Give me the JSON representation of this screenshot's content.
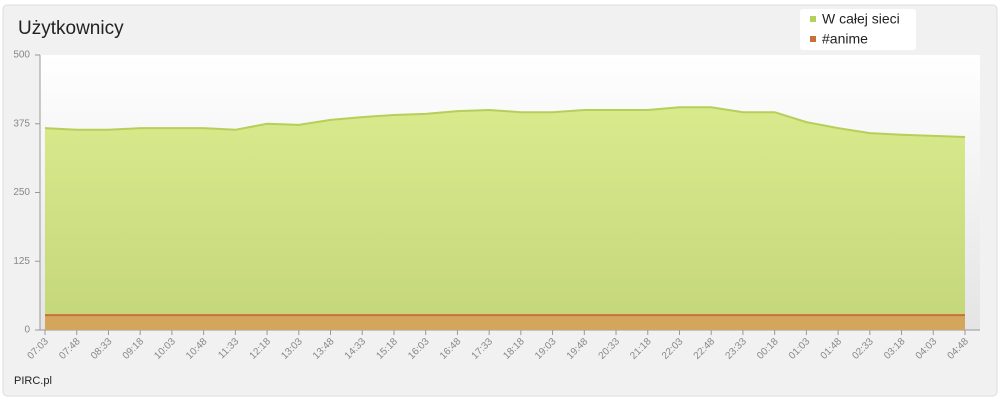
{
  "chart_data": {
    "type": "area",
    "title": "Użytkownicy",
    "categories": [
      "07:03",
      "07:48",
      "08:33",
      "09:18",
      "10:03",
      "10:48",
      "11:33",
      "12:18",
      "13:03",
      "13:48",
      "14:33",
      "15:18",
      "16:03",
      "16:48",
      "17:33",
      "18:18",
      "19:03",
      "19:48",
      "20:33",
      "21:18",
      "22:03",
      "22:48",
      "23:33",
      "00:18",
      "01:03",
      "01:48",
      "02:33",
      "03:18",
      "04:03",
      "04:48"
    ],
    "series": [
      {
        "name": "W całej sieci",
        "color": "#b6cf5a",
        "values": [
          367,
          364,
          364,
          367,
          367,
          367,
          364,
          375,
          373,
          382,
          387,
          391,
          393,
          398,
          400,
          396,
          396,
          400,
          400,
          400,
          405,
          405,
          396,
          396,
          378,
          367,
          358,
          355,
          353,
          351
        ]
      },
      {
        "name": "#anime",
        "color": "#c9703a",
        "values": [
          27,
          27,
          27,
          27,
          27,
          27,
          27,
          27,
          27,
          27,
          27,
          27,
          27,
          27,
          27,
          27,
          27,
          27,
          27,
          27,
          27,
          27,
          27,
          27,
          27,
          27,
          27,
          27,
          27,
          27
        ]
      }
    ],
    "ylim": [
      0,
      500
    ],
    "yticks": [
      0,
      125,
      250,
      375,
      500
    ],
    "grid": false,
    "legend": "top-right",
    "footer": "PIRC.pl"
  }
}
